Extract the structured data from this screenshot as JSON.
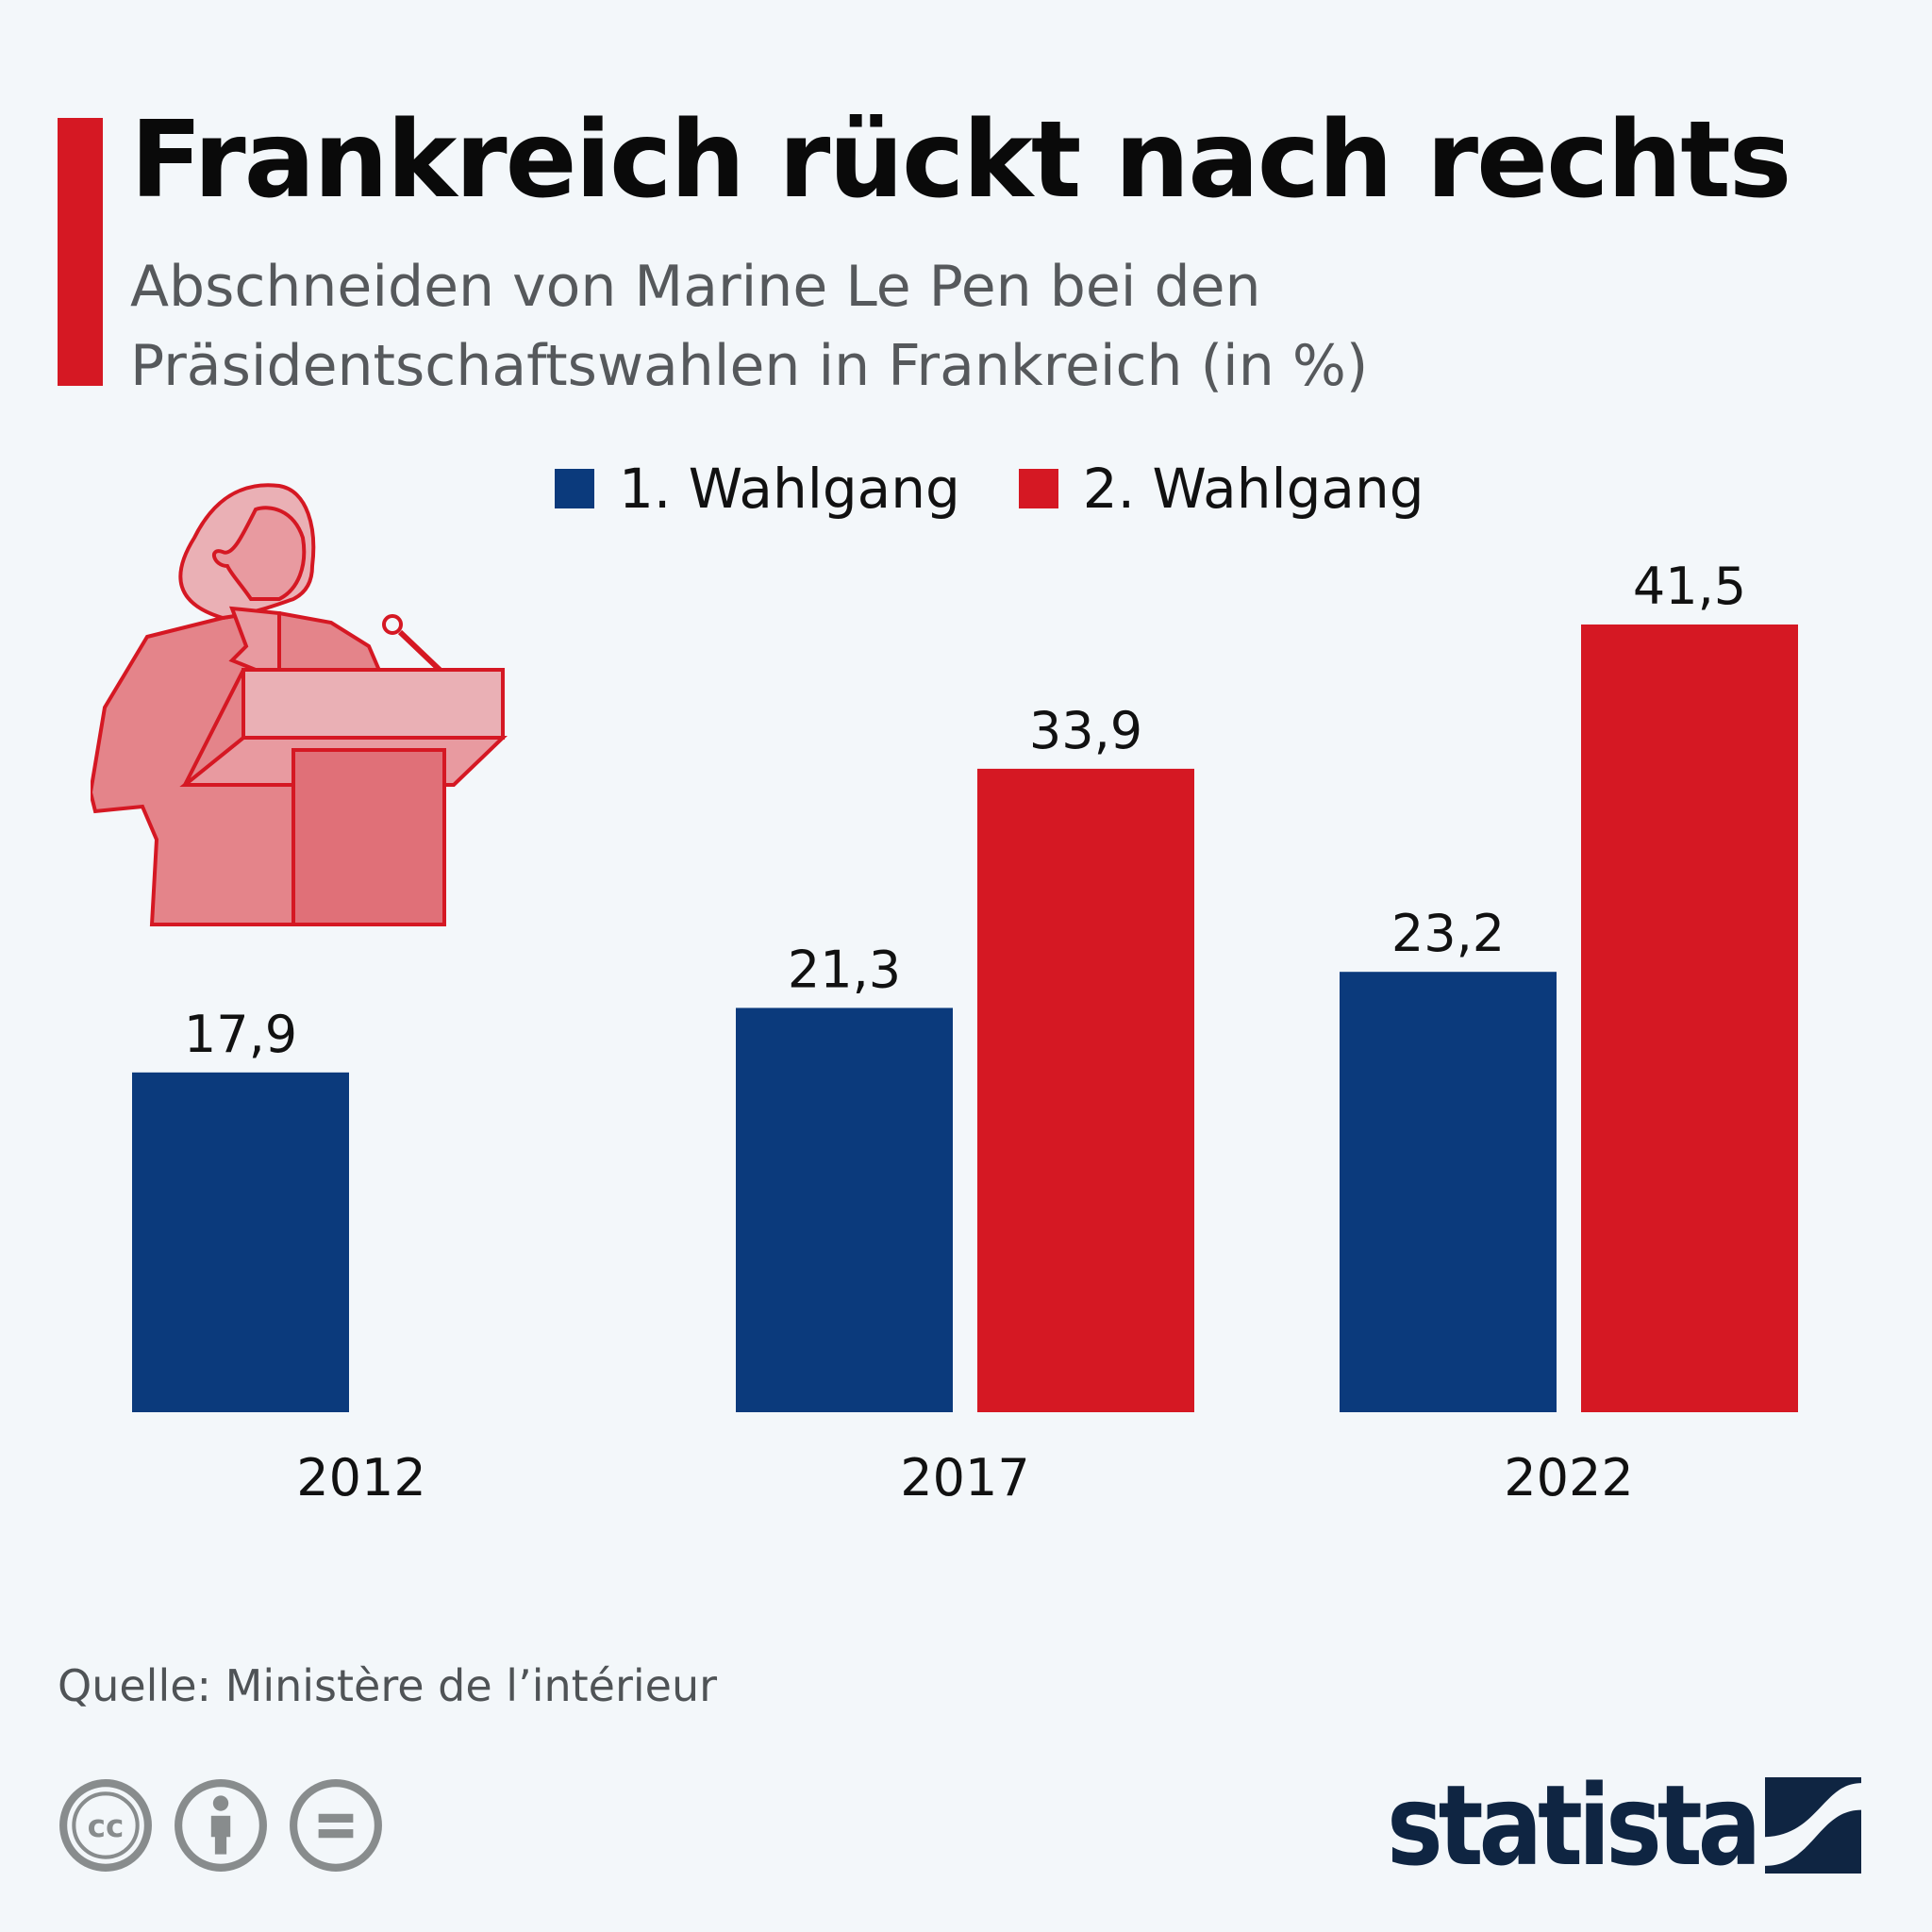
{
  "header": {
    "title": "Frankreich rückt nach rechts",
    "subtitle": "Abschneiden von Marine Le Pen bei den Präsidentschaftswahlen in Frankreich (in %)"
  },
  "legend": [
    {
      "label": "1. Wahlgang",
      "color": "#0b3a7c"
    },
    {
      "label": "2. Wahlgang",
      "color": "#d51823"
    }
  ],
  "chart_data": {
    "type": "bar",
    "title": "Frankreich rückt nach rechts",
    "subtitle": "Abschneiden von Marine Le Pen bei den Präsidentschaftswahlen in Frankreich (in %)",
    "xlabel": "",
    "ylabel": "",
    "categories": [
      "2012",
      "2017",
      "2022"
    ],
    "series": [
      {
        "name": "1. Wahlgang",
        "color": "#0b3a7c",
        "values": [
          17.9,
          21.3,
          23.2
        ],
        "labels": [
          "17,9",
          "21,3",
          "23,2"
        ]
      },
      {
        "name": "2. Wahlgang",
        "color": "#d51823",
        "values": [
          null,
          33.9,
          41.5
        ],
        "labels": [
          null,
          "33,9",
          "41,5"
        ]
      }
    ],
    "ylim": [
      0,
      41.5
    ],
    "grid": false,
    "legend_position": "top-center"
  },
  "illustration": {
    "icon": "speaker-at-podium-icon",
    "color": "#d51823"
  },
  "footer": {
    "source": "Quelle: Ministère de l’intérieur",
    "license_icons": [
      "cc-icon",
      "attribution-icon",
      "no-derivatives-icon"
    ],
    "brand": "statista"
  }
}
